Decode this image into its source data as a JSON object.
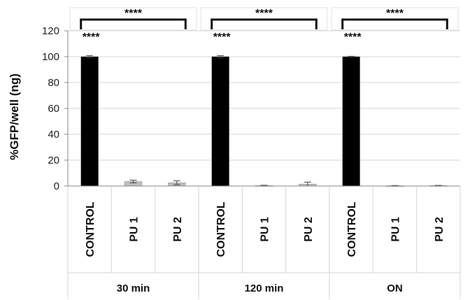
{
  "chart_data": {
    "type": "bar",
    "ylabel": "%GFP/well (ng)",
    "ylim": [
      0,
      120
    ],
    "yticks": [
      0,
      20,
      40,
      60,
      80,
      100,
      120
    ],
    "grid": true,
    "groups": [
      {
        "label": "30 min",
        "categories": [
          "CONTROL",
          "PU 1",
          "PU 2"
        ],
        "values": [
          100,
          3.5,
          2.5
        ],
        "errors": [
          0.8,
          1.0,
          1.5
        ],
        "significance": "****"
      },
      {
        "label": "120 min",
        "categories": [
          "CONTROL",
          "PU 1",
          "PU 2"
        ],
        "values": [
          100,
          0.3,
          1.5
        ],
        "errors": [
          0.8,
          0.3,
          1.5
        ],
        "significance": "****"
      },
      {
        "label": "ON",
        "categories": [
          "CONTROL",
          "PU 1",
          "PU 2"
        ],
        "values": [
          100,
          0.2,
          0.3
        ],
        "errors": [
          0.3,
          0.2,
          0.2
        ],
        "significance": "****"
      }
    ],
    "colors": {
      "control": "#000000",
      "treatment": "#bdbdbd",
      "grid": "#d6d6d6",
      "axis": "#888888"
    }
  }
}
